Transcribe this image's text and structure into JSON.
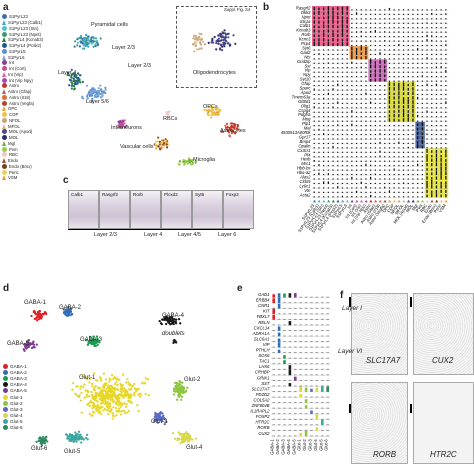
{
  "panel_a": {
    "letter": "a",
    "cluster_labels": [
      "Pyramidal cells",
      "Layer 2/3",
      "Layer 4",
      "Layer 2/3",
      "Layer 5/6",
      "Interneurons",
      "RBCs",
      "OPCs",
      "Astrocytes",
      "Vascular cells",
      "Microglia",
      "Oligodendrocytes"
    ],
    "suppl_label": "Suppl. Fig. S4",
    "legend": [
      {
        "label": "S1PyrL23",
        "color": "#3b6fb6"
      },
      {
        "label": "S1PyrL23 (Calb1)",
        "color": "#3ba8d9"
      },
      {
        "label": "S1PyrL23 (Stn)",
        "color": "#53c1c9"
      },
      {
        "label": "S1PyrL23 (Npnt)",
        "color": "#3f9b73"
      },
      {
        "label": "S1PyrL4 (Kcnab3)",
        "color": "#2d7d3a"
      },
      {
        "label": "S1PyrL4 (Pcsk2)",
        "color": "#1f5a92"
      },
      {
        "label": "S1PyrL5",
        "color": "#5f8ecf"
      },
      {
        "label": "S1PyrL6",
        "color": "#7ba7d6"
      },
      {
        "label": "Int",
        "color": "#8a3f96"
      },
      {
        "label": "Int (Cort)",
        "color": "#c94e8f"
      },
      {
        "label": "Int (Vip)",
        "color": "#df5fa6"
      },
      {
        "label": "Int (Vip Npy)",
        "color": "#a74ab0"
      },
      {
        "label": "Astro",
        "color": "#c4332d"
      },
      {
        "label": "Astro (Gfap)",
        "color": "#d4574a"
      },
      {
        "label": "Astro (II18)",
        "color": "#e06a3a"
      },
      {
        "label": "Astro (Vegfa)",
        "color": "#b3442e"
      },
      {
        "label": "OPC",
        "color": "#e3a33b"
      },
      {
        "label": "COP",
        "color": "#ecc34a"
      },
      {
        "label": "NFOL",
        "color": "#c7a27a"
      },
      {
        "label": "MFOL",
        "color": "#d4b98f"
      },
      {
        "label": "MOL (Apod)",
        "color": "#4a4a8a"
      },
      {
        "label": "MOL",
        "color": "#2c2c6e"
      },
      {
        "label": "Mgl",
        "color": "#6cae3f"
      },
      {
        "label": "Pvm",
        "color": "#9acd4f"
      },
      {
        "label": "RBC",
        "color": "#f2c6c9"
      },
      {
        "label": "Endo",
        "color": "#a0522d"
      },
      {
        "label": "Endo (Bmx)",
        "color": "#7a3c1d"
      },
      {
        "label": "Peric",
        "color": "#e8d35a"
      },
      {
        "label": "VSM",
        "color": "#f0a020"
      }
    ]
  },
  "panel_b": {
    "letter": "b",
    "genes": [
      "Rasgrf2",
      "Dkk3",
      "Npnt",
      "Stx1a",
      "Calb1",
      "Kcnab3",
      "Rorb",
      "Kcnc3",
      "Pcp4",
      "Syt6",
      "Gad2",
      "Nts",
      "Grid2ip",
      "Sst",
      "Vip",
      "Npy",
      "Syt10",
      "Gfap",
      "Sparc",
      "Apod",
      "Tmem63a",
      "Glt8d1",
      "Olig1",
      "Cspg4",
      "Pdgfra",
      "Mog",
      "Plp1",
      "Mal",
      "4930513A00Rik",
      "Gpr17",
      "Bmp4",
      "Opalin",
      "Cx3cr1",
      "Pf4",
      "Hexb",
      "Mrc1",
      "Hbb-bs",
      "Hba-a2",
      "Alas2",
      "Cldn5",
      "Ly6c1",
      "Vtn",
      "Acta2"
    ],
    "box_colors": [
      "#e5487a",
      "#f08c2a",
      "#c658b0",
      "#d8d826",
      "#2f4f8f",
      "#e8e52a"
    ],
    "col_labels": [
      "S1PyrL23",
      "S1PyrL23 (Calb1)",
      "S1PyrL23 (Stn)",
      "S1PyrL23 (Npnt)",
      "S1PyrL4 (Kcnab3)",
      "S1PyrL4 (Pcsk2)",
      "S1PyrL5",
      "S1PyrL6",
      "Int",
      "Int (Cort)",
      "Int (Vip)",
      "Int (Vip Npy)",
      "Astro",
      "Astro (Gfap)",
      "Astro (II18)",
      "Astro (Vegfa)",
      "OPC",
      "COP",
      "NFOL",
      "MFOL",
      "MOL (Apod)",
      "MOL",
      "Mgl",
      "Pvm",
      "RBC",
      "Endo",
      "Endo (Bmx)",
      "Peric",
      "VSM"
    ]
  },
  "panel_c": {
    "letter": "c",
    "genes": [
      "Calb1",
      "Rasgrf2",
      "Rorb",
      "Plcxd2",
      "Syt6",
      "Foxp2"
    ],
    "layer_labels": [
      "Layer 2/3",
      "Layer 4",
      "Layer 4/5",
      "Layer 6"
    ]
  },
  "panel_d": {
    "letter": "d",
    "cluster_labels": [
      "GABA-1",
      "GABA-2",
      "GABA-4",
      "doublets",
      "GABA-3",
      "GABA-5",
      "Glut-1",
      "Glut-2",
      "Glut-3",
      "Glut-4",
      "Glut-5",
      "Glut-6"
    ],
    "legend": [
      {
        "label": "GABA-1",
        "color": "#e01f26"
      },
      {
        "label": "GABA-2",
        "color": "#2f6db5"
      },
      {
        "label": "GABA-3",
        "color": "#1a9b50"
      },
      {
        "label": "GABA-4",
        "color": "#1a1a1a"
      },
      {
        "label": "GABA-5",
        "color": "#7a3b91"
      },
      {
        "label": "Glut-1",
        "color": "#e8d72a"
      },
      {
        "label": "Glut-2",
        "color": "#8cc63f"
      },
      {
        "label": "Glut-3",
        "color": "#5b6cc0"
      },
      {
        "label": "Glut-4",
        "color": "#d8d84a"
      },
      {
        "label": "Glut-5",
        "color": "#3aa8a0"
      },
      {
        "label": "Glut-6",
        "color": "#2d8a5f"
      }
    ]
  },
  "panel_e": {
    "letter": "e",
    "genes": [
      "GAD1",
      "ERBB4",
      "CNR1",
      "KIT",
      "FBXL7",
      "RELN",
      "CXCL14",
      "ADRA1A",
      "SLC6A1",
      "VIP",
      "PTHLH",
      "SOX6",
      "TAC1",
      "LHX6",
      "CRHBP",
      "GRIK1",
      "SST",
      "SLC17A7",
      "PDZD2",
      "COL5A2",
      "ZNF804B",
      "IL1RAPL2",
      "FOXP2",
      "HTR2C",
      "RORB",
      "CUX2"
    ],
    "col_labels": [
      "GABA-1",
      "GABA-2",
      "GABA-3",
      "GABA-4",
      "GABA-5",
      "Glut-1",
      "Glut-2",
      "Glut-3",
      "Glut-4",
      "Glut-5",
      "Glut-6"
    ]
  },
  "panel_f": {
    "letter": "f",
    "layer_top": "Layer I",
    "layer_bottom": "Layer VI",
    "genes": [
      "SLC17A7",
      "CUX2",
      "RORB",
      "HTR2C"
    ]
  }
}
